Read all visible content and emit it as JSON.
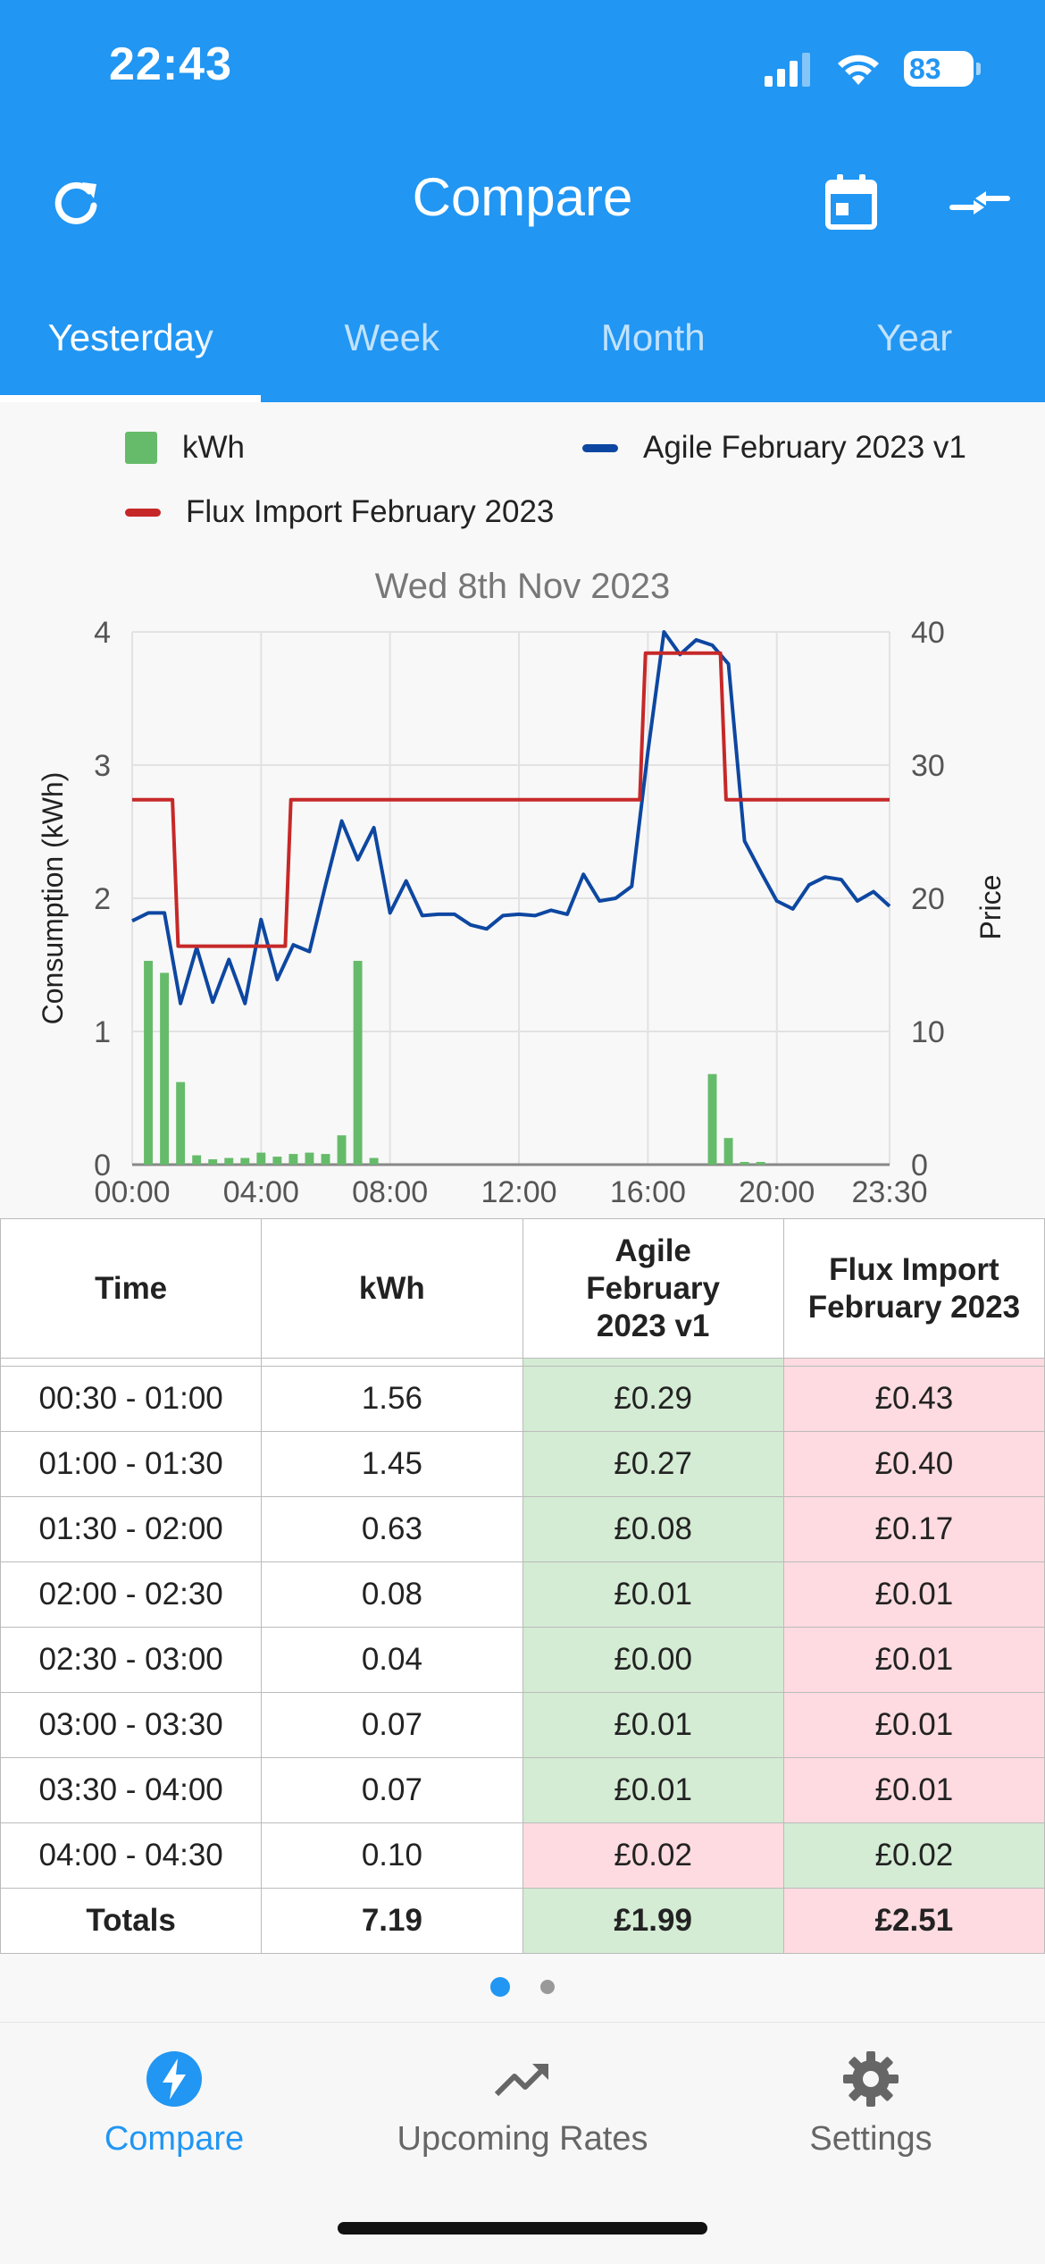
{
  "status_bar": {
    "time": "22:43",
    "battery": "83"
  },
  "header": {
    "title": "Compare"
  },
  "tabs": [
    {
      "label": "Yesterday",
      "active": true
    },
    {
      "label": "Week",
      "active": false
    },
    {
      "label": "Month",
      "active": false
    },
    {
      "label": "Year",
      "active": false
    }
  ],
  "legend": [
    {
      "label": "kWh",
      "color": "#66bb6a"
    },
    {
      "label": "Agile February 2023 v1",
      "color": "#0d47a1"
    },
    {
      "label": "Flux Import February 2023",
      "color": "#c62828"
    }
  ],
  "chart_data": {
    "type": "bar",
    "title": "Wed 8th Nov 2023",
    "ylabel": "Consumption (kWh)",
    "y2label": "Price",
    "ylim": [
      0,
      4
    ],
    "y2lim": [
      0,
      40
    ],
    "yticks": [
      "0",
      "1",
      "2",
      "3",
      "4"
    ],
    "y2ticks": [
      "0",
      "10",
      "20",
      "30",
      "40"
    ],
    "xticks": [
      "00:00",
      "04:00",
      "08:00",
      "12:00",
      "16:00",
      "20:00",
      "23:30"
    ],
    "grid": true,
    "x": [
      "00:00",
      "00:30",
      "01:00",
      "01:30",
      "02:00",
      "02:30",
      "03:00",
      "03:30",
      "04:00",
      "04:30",
      "05:00",
      "05:30",
      "06:00",
      "06:30",
      "07:00",
      "07:30",
      "08:00",
      "08:30",
      "09:00",
      "09:30",
      "10:00",
      "10:30",
      "11:00",
      "11:30",
      "12:00",
      "12:30",
      "13:00",
      "13:30",
      "14:00",
      "14:30",
      "15:00",
      "15:30",
      "16:00",
      "16:30",
      "17:00",
      "17:30",
      "18:00",
      "18:30",
      "19:00",
      "19:30",
      "20:00",
      "20:30",
      "21:00",
      "21:30",
      "22:00",
      "22:30",
      "23:00",
      "23:30"
    ],
    "series": [
      {
        "name": "kWh",
        "type": "bar",
        "axis": "left",
        "color": "#66bb6a",
        "values": [
          0,
          1.53,
          1.44,
          0.62,
          0.07,
          0.04,
          0.05,
          0.05,
          0.09,
          0.06,
          0.08,
          0.09,
          0.08,
          0.22,
          1.53,
          0.05,
          0,
          0,
          0,
          0,
          0,
          0,
          0,
          0,
          0,
          0,
          0,
          0,
          0,
          0,
          0,
          0,
          0,
          0,
          0,
          0,
          0.68,
          0.2,
          0.02,
          0.02,
          0,
          0,
          0,
          0,
          0,
          0,
          0,
          0
        ]
      },
      {
        "name": "Agile February 2023 v1",
        "type": "line",
        "axis": "right",
        "color": "#0d47a1",
        "values": [
          18.3,
          18.9,
          18.9,
          12.1,
          16.3,
          12.2,
          15.4,
          12.1,
          18.4,
          13.9,
          16.5,
          16.0,
          21.0,
          25.8,
          22.9,
          25.3,
          18.9,
          21.3,
          18.7,
          18.8,
          18.8,
          18.0,
          17.7,
          18.7,
          18.8,
          18.7,
          19.1,
          18.8,
          21.8,
          19.8,
          20.0,
          20.9,
          31.0,
          40.0,
          38.3,
          39.4,
          39.0,
          37.6,
          24.3,
          22.0,
          19.8,
          19.2,
          21.0,
          21.6,
          21.4,
          19.8,
          20.5,
          19.4
        ]
      },
      {
        "name": "Flux Import February 2023",
        "type": "step",
        "axis": "right",
        "color": "#c62828",
        "values": [
          27.4,
          27.4,
          27.4,
          16.4,
          16.4,
          16.4,
          16.4,
          16.4,
          16.4,
          16.4,
          27.4,
          27.4,
          27.4,
          27.4,
          27.4,
          27.4,
          27.4,
          27.4,
          27.4,
          27.4,
          27.4,
          27.4,
          27.4,
          27.4,
          27.4,
          27.4,
          27.4,
          27.4,
          27.4,
          27.4,
          27.4,
          27.4,
          38.4,
          38.4,
          38.4,
          38.4,
          38.4,
          27.4,
          27.4,
          27.4,
          27.4,
          27.4,
          27.4,
          27.4,
          27.4,
          27.4,
          27.4,
          27.4
        ]
      }
    ]
  },
  "table": {
    "headers": [
      "Time",
      "kWh",
      "Agile February 2023 v1",
      "Flux Import February 2023"
    ],
    "rows": [
      {
        "time": "00:30 - 01:00",
        "kwh": "1.56",
        "agile": "£0.29",
        "flux": "£0.43",
        "agile_status": "green",
        "flux_status": "red"
      },
      {
        "time": "01:00 - 01:30",
        "kwh": "1.45",
        "agile": "£0.27",
        "flux": "£0.40",
        "agile_status": "green",
        "flux_status": "red"
      },
      {
        "time": "01:30 - 02:00",
        "kwh": "0.63",
        "agile": "£0.08",
        "flux": "£0.17",
        "agile_status": "green",
        "flux_status": "red"
      },
      {
        "time": "02:00 - 02:30",
        "kwh": "0.08",
        "agile": "£0.01",
        "flux": "£0.01",
        "agile_status": "green",
        "flux_status": "red"
      },
      {
        "time": "02:30 - 03:00",
        "kwh": "0.04",
        "agile": "£0.00",
        "flux": "£0.01",
        "agile_status": "green",
        "flux_status": "red"
      },
      {
        "time": "03:00 - 03:30",
        "kwh": "0.07",
        "agile": "£0.01",
        "flux": "£0.01",
        "agile_status": "green",
        "flux_status": "red"
      },
      {
        "time": "03:30 - 04:00",
        "kwh": "0.07",
        "agile": "£0.01",
        "flux": "£0.01",
        "agile_status": "green",
        "flux_status": "red"
      },
      {
        "time": "04:00 - 04:30",
        "kwh": "0.10",
        "agile": "£0.02",
        "flux": "£0.02",
        "agile_status": "red",
        "flux_status": "green"
      }
    ],
    "totals": {
      "label": "Totals",
      "kwh": "7.19",
      "agile": "£1.99",
      "flux": "£2.51",
      "agile_status": "green",
      "flux_status": "red"
    }
  },
  "pager": {
    "count": 2,
    "active": 0
  },
  "bottom_nav": [
    {
      "label": "Compare",
      "icon": "bolt-icon",
      "active": true
    },
    {
      "label": "Upcoming Rates",
      "icon": "trending-up-icon",
      "active": false
    },
    {
      "label": "Settings",
      "icon": "gear-icon",
      "active": false
    }
  ]
}
